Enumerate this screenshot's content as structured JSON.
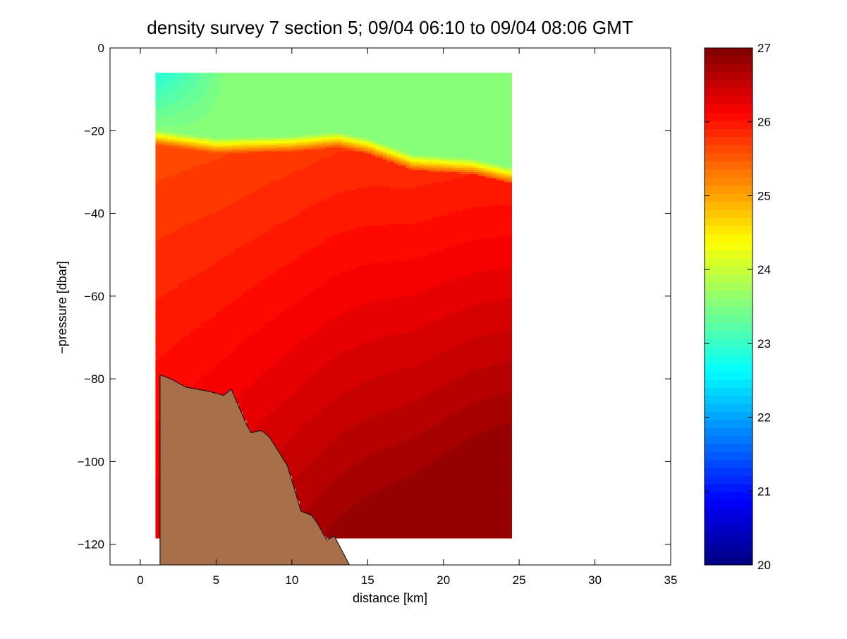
{
  "chart_data": {
    "type": "heatmap",
    "title": "density survey 7 section 5; 09/04 06:10 to 09/04 08:06 GMT",
    "xlabel": "distance [km]",
    "ylabel": "−pressure [dbar]",
    "xlim": [
      -2,
      35
    ],
    "ylim": [
      -125,
      0
    ],
    "xticks": [
      0,
      5,
      10,
      15,
      20,
      25,
      30,
      35
    ],
    "yticks": [
      -120,
      -100,
      -80,
      -60,
      -40,
      -20,
      0
    ],
    "colorbar": {
      "min": 20,
      "max": 27,
      "ticks": [
        20,
        21,
        22,
        23,
        24,
        25,
        26,
        27
      ],
      "colormap": "jet"
    },
    "field": {
      "x_range": [
        1.0,
        24.3
      ],
      "top_depth": -6,
      "surface_value": 23.6,
      "nearshore_surface_value": 22.9,
      "pycnocline_value_below": 25.6,
      "deep_value": 26.8,
      "pycnocline": [
        {
          "x": 1.0,
          "y": -21
        },
        {
          "x": 5,
          "y": -23
        },
        {
          "x": 10,
          "y": -22.5
        },
        {
          "x": 13,
          "y": -21.5
        },
        {
          "x": 15,
          "y": -23
        },
        {
          "x": 18,
          "y": -27
        },
        {
          "x": 22,
          "y": -28
        },
        {
          "x": 24.3,
          "y": -30
        }
      ]
    },
    "bathymetry": [
      {
        "x": 1.3,
        "y": -79
      },
      {
        "x": 2,
        "y": -80
      },
      {
        "x": 3,
        "y": -82
      },
      {
        "x": 4.5,
        "y": -83
      },
      {
        "x": 5.5,
        "y": -84
      },
      {
        "x": 6,
        "y": -82.5
      },
      {
        "x": 7,
        "y": -91
      },
      {
        "x": 7.3,
        "y": -93
      },
      {
        "x": 8,
        "y": -92.5
      },
      {
        "x": 8.5,
        "y": -94
      },
      {
        "x": 9.2,
        "y": -98
      },
      {
        "x": 9.7,
        "y": -101
      },
      {
        "x": 10.2,
        "y": -107
      },
      {
        "x": 10.6,
        "y": -112
      },
      {
        "x": 11.3,
        "y": -113
      },
      {
        "x": 11.7,
        "y": -115
      },
      {
        "x": 12.3,
        "y": -119
      },
      {
        "x": 12.8,
        "y": -118
      },
      {
        "x": 13.8,
        "y": -125
      }
    ],
    "colors": {
      "seabed": "#A8704A",
      "seabed_outline": "#000000"
    }
  }
}
